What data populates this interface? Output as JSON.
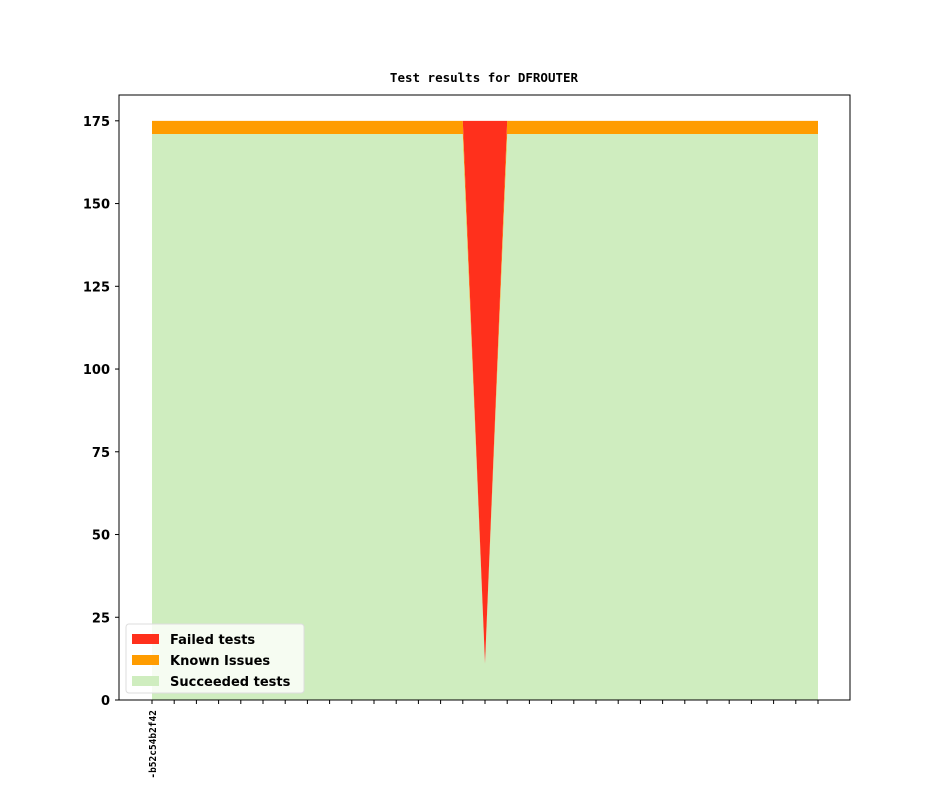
{
  "chart_data": {
    "type": "stacked-area",
    "title": "Test results for DFROUTER",
    "categories": [
      "-b52c54b2f42",
      null,
      null,
      null,
      null,
      null,
      null,
      null,
      null,
      null,
      null,
      null,
      null,
      null,
      null,
      null,
      null,
      null,
      null,
      null,
      null,
      null,
      null,
      null,
      null,
      null,
      null,
      null,
      null,
      null,
      null
    ],
    "series": [
      {
        "name": "Succeeded tests",
        "color": "#cfedbf",
        "values": [
          171,
          171,
          171,
          171,
          171,
          171,
          171,
          171,
          171,
          171,
          171,
          171,
          171,
          171,
          171,
          11,
          171,
          171,
          171,
          171,
          171,
          171,
          171,
          171,
          171,
          171,
          171,
          171,
          171,
          171,
          171
        ]
      },
      {
        "name": "Known Issues",
        "color": "#ff9c00",
        "values": [
          4,
          4,
          4,
          4,
          4,
          4,
          4,
          4,
          4,
          4,
          4,
          4,
          4,
          4,
          4,
          0,
          4,
          4,
          4,
          4,
          4,
          4,
          4,
          4,
          4,
          4,
          4,
          4,
          4,
          4,
          4
        ]
      },
      {
        "name": "Failed tests",
        "color": "#ff301c",
        "values": [
          0,
          0,
          0,
          0,
          0,
          0,
          0,
          0,
          0,
          0,
          0,
          0,
          0,
          0,
          0,
          164,
          0,
          0,
          0,
          0,
          0,
          0,
          0,
          0,
          0,
          0,
          0,
          0,
          0,
          0,
          0
        ]
      }
    ],
    "ylim": [
      0,
      182.8
    ],
    "yticks": [
      0,
      25,
      50,
      75,
      100,
      125,
      150,
      175
    ],
    "legend": "lower left"
  }
}
